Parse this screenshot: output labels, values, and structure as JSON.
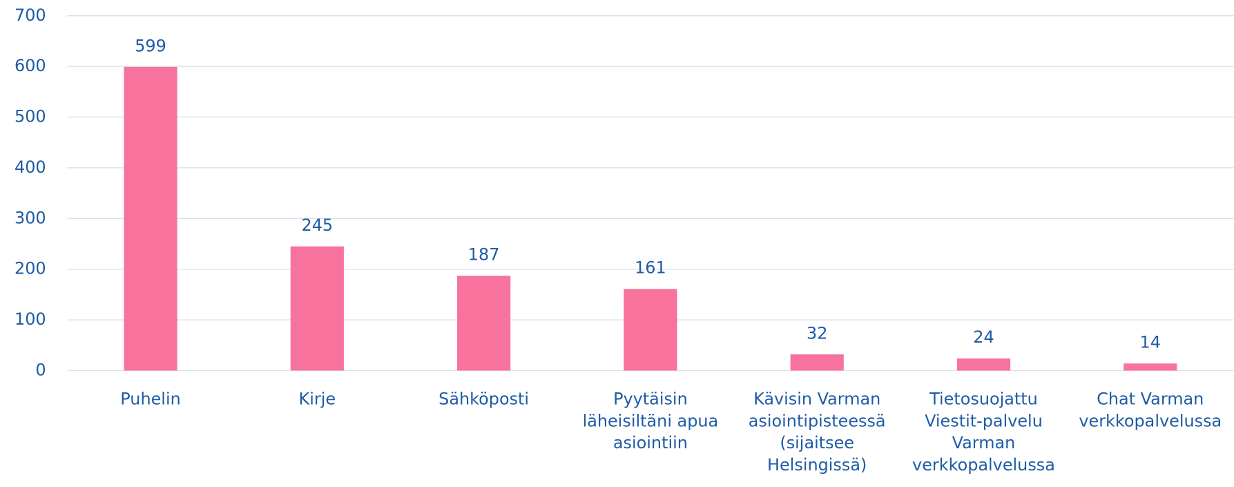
{
  "chart_data": {
    "type": "bar",
    "categories": [
      "Puhelin",
      "Kirje",
      "Sähköposti",
      "Pyytäisin läheisiltäni apua asiointiin",
      "Kävisin Varman asiointipisteessä (sijaitsee Helsingissä)",
      "Tietosuojattu Viestit-palvelu Varman verkkopalvelussa",
      "Chat Varman verkkopalvelussa"
    ],
    "values": [
      599,
      245,
      187,
      161,
      32,
      24,
      14
    ],
    "color": "#f7739e",
    "ylim": [
      0,
      700
    ],
    "yticks": [
      0,
      100,
      200,
      300,
      400,
      500,
      600,
      700
    ],
    "grid": true
  }
}
